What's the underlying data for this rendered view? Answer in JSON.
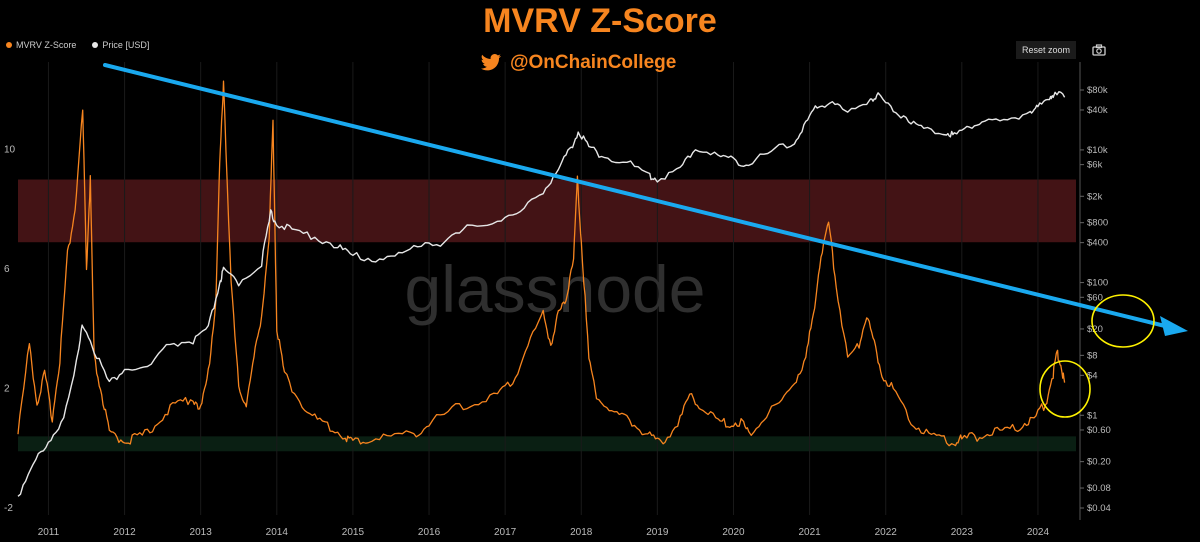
{
  "header": {
    "title": "MVRV Z-Score",
    "handle": "@OnChainCollege"
  },
  "toolbar": {
    "reset_label": "Reset zoom",
    "camera_icon": "camera-icon"
  },
  "watermark": "glassnode",
  "colors": {
    "zscore": "#f7851f",
    "price": "#ffffff",
    "trend": "#1aa9ef",
    "highlight": "#fff200",
    "red_band": "#4a1517",
    "green_band": "#0b2215",
    "title": "#f7851f"
  },
  "chart_data": {
    "type": "line",
    "title": "MVRV Z-Score",
    "x_ticks": [
      "2011",
      "2012",
      "2013",
      "2014",
      "2015",
      "2016",
      "2017",
      "2018",
      "2019",
      "2020",
      "2021",
      "2022",
      "2023",
      "2024"
    ],
    "left_axis": {
      "ticks": [
        "10",
        "6",
        "2",
        "-2"
      ],
      "range": [
        -2,
        12.5
      ]
    },
    "right_axis": {
      "scale": "log",
      "ticks": [
        "$80k",
        "$40k",
        "$10k",
        "$6k",
        "$2k",
        "$800",
        "$400",
        "$100",
        "$60",
        "$20",
        "$8",
        "$4",
        "$1",
        "$0.60",
        "$0.20",
        "$0.08",
        "$0.04"
      ]
    },
    "legend": {
      "placement": "top-left",
      "entries": [
        "MVRV Z-Score",
        "Price [USD]"
      ]
    },
    "series": [
      {
        "name": "MVRV Z-Score",
        "axis": "left",
        "x": [
          2010.6,
          2010.75,
          2010.85,
          2010.95,
          2011.05,
          2011.15,
          2011.25,
          2011.35,
          2011.45,
          2011.5,
          2011.55,
          2011.6,
          2011.7,
          2011.8,
          2011.95,
          2012.1,
          2012.3,
          2012.5,
          2012.7,
          2012.9,
          2013.0,
          2013.1,
          2013.2,
          2013.25,
          2013.3,
          2013.4,
          2013.5,
          2013.6,
          2013.7,
          2013.8,
          2013.9,
          2013.95,
          2014.0,
          2014.1,
          2014.3,
          2014.5,
          2014.7,
          2014.9,
          2015.0,
          2015.2,
          2015.5,
          2015.8,
          2016.0,
          2016.3,
          2016.6,
          2016.9,
          2017.1,
          2017.3,
          2017.5,
          2017.6,
          2017.7,
          2017.8,
          2017.9,
          2017.95,
          2018.0,
          2018.1,
          2018.2,
          2018.4,
          2018.6,
          2018.8,
          2018.95,
          2019.1,
          2019.3,
          2019.45,
          2019.6,
          2019.8,
          2019.95,
          2020.1,
          2020.2,
          2020.4,
          2020.6,
          2020.8,
          2020.95,
          2021.05,
          2021.15,
          2021.25,
          2021.35,
          2021.5,
          2021.65,
          2021.75,
          2021.85,
          2021.95,
          2022.1,
          2022.3,
          2022.5,
          2022.7,
          2022.9,
          2023.0,
          2023.2,
          2023.4,
          2023.6,
          2023.8,
          2023.95,
          2024.1,
          2024.2,
          2024.25,
          2024.3,
          2024.35
        ],
        "y": [
          0.5,
          3.5,
          1.5,
          2.5,
          1.0,
          3.0,
          6.5,
          8.0,
          11.3,
          6.0,
          9.0,
          3.0,
          1.8,
          0.5,
          0.3,
          0.3,
          0.5,
          1.1,
          1.5,
          1.7,
          1.3,
          2.5,
          5.0,
          9.5,
          12.3,
          5.5,
          2.0,
          1.5,
          3.0,
          4.5,
          7.0,
          11.0,
          4.0,
          2.5,
          1.6,
          1.0,
          0.7,
          0.4,
          0.2,
          0.3,
          0.4,
          0.5,
          0.8,
          1.3,
          1.5,
          1.8,
          2.2,
          3.5,
          4.5,
          3.5,
          4.5,
          5.0,
          6.5,
          9.0,
          7.0,
          3.0,
          1.8,
          1.2,
          1.0,
          0.6,
          0.3,
          0.3,
          1.0,
          1.8,
          1.3,
          0.9,
          0.8,
          0.9,
          0.5,
          1.0,
          1.5,
          2.2,
          3.0,
          4.5,
          6.5,
          7.5,
          5.5,
          3.0,
          3.5,
          4.5,
          3.5,
          2.5,
          2.0,
          1.0,
          0.6,
          0.3,
          0.2,
          0.3,
          0.4,
          0.5,
          0.6,
          0.8,
          1.0,
          1.5,
          2.5,
          3.2,
          2.8,
          2.2
        ]
      },
      {
        "name": "Price [USD]",
        "axis": "right",
        "x": [
          2010.6,
          2010.8,
          2011.0,
          2011.2,
          2011.4,
          2011.45,
          2011.6,
          2011.8,
          2012.0,
          2012.3,
          2012.6,
          2012.9,
          2013.1,
          2013.25,
          2013.3,
          2013.5,
          2013.8,
          2013.92,
          2014.0,
          2014.2,
          2014.5,
          2014.8,
          2015.0,
          2015.3,
          2015.6,
          2015.9,
          2016.2,
          2016.5,
          2016.9,
          2017.2,
          2017.5,
          2017.7,
          2017.85,
          2017.96,
          2018.1,
          2018.3,
          2018.6,
          2018.9,
          2019.0,
          2019.3,
          2019.5,
          2019.8,
          2020.0,
          2020.2,
          2020.5,
          2020.8,
          2020.95,
          2021.1,
          2021.3,
          2021.5,
          2021.8,
          2021.9,
          2022.1,
          2022.3,
          2022.5,
          2022.8,
          2022.9,
          2023.1,
          2023.3,
          2023.6,
          2023.9,
          2024.0,
          2024.15,
          2024.2,
          2024.35
        ],
        "y": [
          0.06,
          0.2,
          0.35,
          1.0,
          9.0,
          25.0,
          10.0,
          3.0,
          5.0,
          5.0,
          12.0,
          13.0,
          20.0,
          100.0,
          150.0,
          100.0,
          200.0,
          1100.0,
          800.0,
          600.0,
          500.0,
          350.0,
          250.0,
          230.0,
          250.0,
          400.0,
          400.0,
          650.0,
          900.0,
          1100.0,
          2500.0,
          5000.0,
          10000.0,
          19000.0,
          11000.0,
          8000.0,
          6500.0,
          4000.0,
          3700.0,
          5000.0,
          11000.0,
          8000.0,
          7200.0,
          6000.0,
          9500.0,
          13000.0,
          25000.0,
          45000.0,
          55000.0,
          35000.0,
          60000.0,
          65000.0,
          40000.0,
          30000.0,
          20000.0,
          19000.0,
          16500.0,
          23000.0,
          28000.0,
          26000.0,
          40000.0,
          42000.0,
          65000.0,
          70000.0,
          62000.0
        ]
      }
    ]
  }
}
